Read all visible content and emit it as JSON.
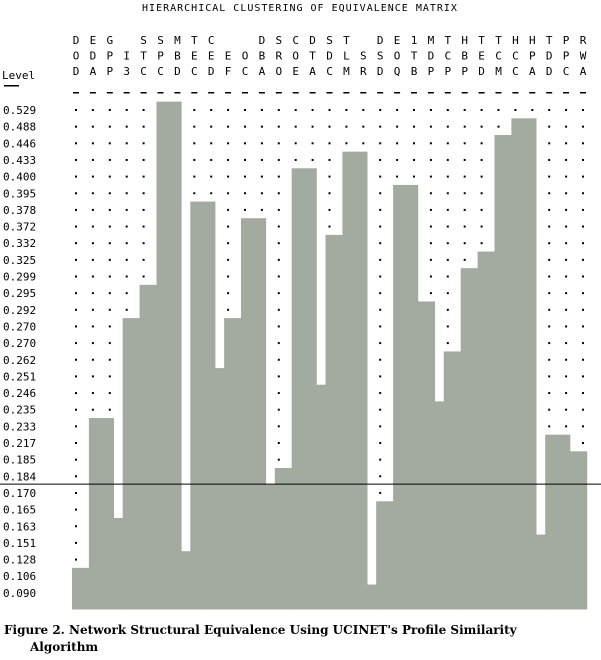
{
  "chart_data": {
    "type": "bar",
    "title": "HIERARCHICAL CLUSTERING OF EQUIVALENCE MATRIX",
    "level_label": "Level",
    "column_codes": [
      [
        "D",
        "O",
        "D"
      ],
      [
        "E",
        "D",
        "A"
      ],
      [
        "G",
        "P",
        "P"
      ],
      [
        "",
        "I",
        "3"
      ],
      [
        "S",
        "T",
        "C"
      ],
      [
        "S",
        "P",
        "C"
      ],
      [
        "M",
        "B",
        "D"
      ],
      [
        "T",
        "E",
        "C"
      ],
      [
        "C",
        "E",
        "D"
      ],
      [
        "",
        "E",
        "F"
      ],
      [
        "",
        "O",
        "C"
      ],
      [
        "D",
        "B",
        "A"
      ],
      [
        "S",
        "R",
        "O"
      ],
      [
        "C",
        "O",
        "E"
      ],
      [
        "D",
        "T",
        "A"
      ],
      [
        "S",
        "D",
        "C"
      ],
      [
        "T",
        "L",
        "M"
      ],
      [
        "",
        "S",
        "R"
      ],
      [
        "D",
        "S",
        "D"
      ],
      [
        "E",
        "O",
        "Q"
      ],
      [
        "1",
        "T",
        "B"
      ],
      [
        "M",
        "D",
        "P"
      ],
      [
        "T",
        "C",
        "P"
      ],
      [
        "H",
        "B",
        "P"
      ],
      [
        "T",
        "E",
        "D"
      ],
      [
        "T",
        "C",
        "M"
      ],
      [
        "H",
        "C",
        "C"
      ],
      [
        "H",
        "P",
        "A"
      ],
      [
        "T",
        "D",
        "D"
      ],
      [
        "P",
        "P",
        "C"
      ],
      [
        "R",
        "W",
        "A"
      ]
    ],
    "levels": [
      "0.529",
      "0.488",
      "0.446",
      "0.433",
      "0.400",
      "0.395",
      "0.378",
      "0.372",
      "0.332",
      "0.325",
      "0.299",
      "0.295",
      "0.292",
      "0.270",
      "0.270",
      "0.262",
      "0.251",
      "0.246",
      "0.235",
      "0.233",
      "0.217",
      "0.185",
      "0.184",
      "0.170",
      "0.165",
      "0.163",
      "0.151",
      "0.128",
      "0.106",
      "0.090"
    ],
    "merge_levels": [
      0.106,
      0.233,
      0.163,
      0.27,
      0.295,
      0.529,
      0.128,
      0.378,
      0.251,
      0.27,
      0.372,
      0.17,
      0.184,
      0.4,
      0.246,
      0.332,
      0.433,
      0.09,
      0.165,
      0.395,
      0.292,
      0.235,
      0.262,
      0.299,
      0.325,
      0.446,
      0.488,
      0.151,
      0.217,
      0.185
    ],
    "cut_level": 0.184,
    "colors": {
      "bar": "#a3aa9f",
      "text": "#000000",
      "line": "#000000"
    }
  },
  "caption": {
    "label": "Figure 2.",
    "line1": "Network Structural Equivalence Using UCINET's Profile Similarity",
    "line2": "Algorithm"
  }
}
